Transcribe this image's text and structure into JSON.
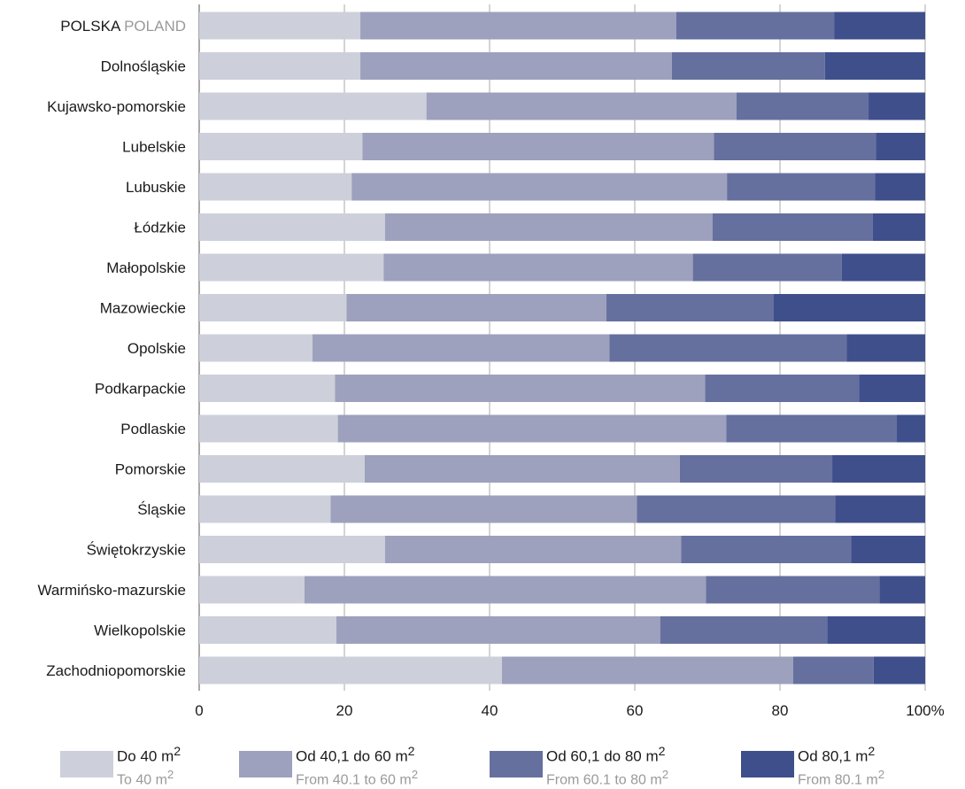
{
  "chart_data": {
    "type": "bar",
    "orientation": "horizontal",
    "stacked": true,
    "xlim": [
      0,
      100
    ],
    "ticks": [
      "0",
      "20",
      "40",
      "60",
      "80",
      "100%"
    ],
    "tick_values": [
      0,
      20,
      40,
      60,
      80,
      100
    ],
    "grid": true,
    "legend_position": "bottom",
    "categories": [
      {
        "pl": "POLSKA",
        "en": "POLAND"
      },
      {
        "pl": "Dolnośląskie"
      },
      {
        "pl": "Kujawsko-pomorskie"
      },
      {
        "pl": "Lubelskie"
      },
      {
        "pl": "Lubuskie"
      },
      {
        "pl": "Łódzkie"
      },
      {
        "pl": "Małopolskie"
      },
      {
        "pl": "Mazowieckie"
      },
      {
        "pl": "Opolskie"
      },
      {
        "pl": "Podkarpackie"
      },
      {
        "pl": "Podlaskie"
      },
      {
        "pl": "Pomorskie"
      },
      {
        "pl": "Śląskie"
      },
      {
        "pl": "Świętokrzyskie"
      },
      {
        "pl": "Warmińsko-mazurskie"
      },
      {
        "pl": "Wielkopolskie"
      },
      {
        "pl": "Zachodniopomorskie"
      }
    ],
    "series": [
      {
        "color": "#cdd0da",
        "legend_pl": "Do 40 m",
        "legend_en": "To 40 m",
        "values": [
          22.2,
          22.2,
          31.3,
          22.5,
          21.0,
          25.6,
          25.4,
          20.3,
          15.6,
          18.7,
          19.1,
          22.8,
          18.1,
          25.6,
          14.5,
          18.9,
          41.7
        ]
      },
      {
        "color": "#9da1bd",
        "legend_pl": "Od 40,1 do 60 m",
        "legend_en": "From 40.1 to 60 m",
        "values": [
          43.5,
          42.9,
          42.7,
          48.4,
          51.7,
          45.1,
          42.6,
          35.8,
          40.9,
          51.0,
          53.5,
          43.4,
          42.2,
          40.8,
          55.3,
          44.6,
          40.1
        ]
      },
      {
        "color": "#66709f",
        "legend_pl": "Od 60,1 do 80 m",
        "legend_en": "From 60.1 to 80 m",
        "values": [
          21.8,
          21.1,
          18.2,
          22.3,
          20.4,
          22.1,
          20.5,
          23.0,
          32.7,
          21.2,
          23.5,
          21.0,
          27.3,
          23.4,
          23.9,
          23.0,
          11.1
        ]
      },
      {
        "color": "#3f4f8c",
        "legend_pl": "Od 80,1 m",
        "legend_en": "From 80.1 m",
        "values": [
          12.5,
          13.8,
          7.8,
          6.8,
          6.9,
          7.2,
          11.5,
          20.9,
          10.8,
          9.1,
          3.9,
          12.8,
          12.4,
          10.2,
          6.3,
          13.5,
          7.1
        ]
      }
    ]
  }
}
